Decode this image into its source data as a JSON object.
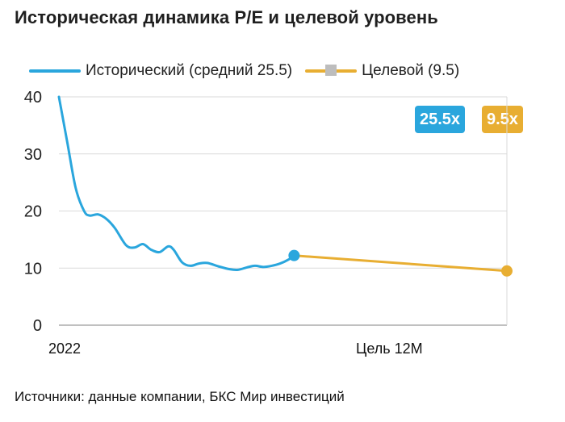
{
  "chart_data": {
    "type": "line",
    "title": "Историческая динамика P/E и целевой уровень",
    "x_labels": [
      "2022",
      "Цель 12М"
    ],
    "ylim": [
      0,
      40
    ],
    "yticks": [
      0,
      10,
      20,
      30,
      40
    ],
    "grid": true,
    "legend_position": "top",
    "series": [
      {
        "name": "Исторический (средний 25.5)",
        "color": "#2aa6dd",
        "points": [
          [
            0,
            40
          ],
          [
            3,
            32
          ],
          [
            6,
            24
          ],
          [
            9,
            20
          ],
          [
            11,
            19.2
          ],
          [
            14,
            19.4
          ],
          [
            17,
            18.6
          ],
          [
            20,
            17
          ],
          [
            24,
            14
          ],
          [
            27,
            13.6
          ],
          [
            30,
            14.2
          ],
          [
            33,
            13.2
          ],
          [
            36,
            12.8
          ],
          [
            39,
            13.8
          ],
          [
            41,
            13.2
          ],
          [
            44,
            11
          ],
          [
            47,
            10.4
          ],
          [
            50,
            10.8
          ],
          [
            53,
            10.9
          ],
          [
            57,
            10.3
          ],
          [
            61,
            9.8
          ],
          [
            64,
            9.7
          ],
          [
            67,
            10.1
          ],
          [
            70,
            10.4
          ],
          [
            73,
            10.2
          ],
          [
            76,
            10.4
          ],
          [
            79,
            10.8
          ],
          [
            82,
            11.5
          ],
          [
            84,
            12.2
          ]
        ],
        "end_value": 12.2
      },
      {
        "name": "Целевой (9.5)",
        "color": "#e8ae32",
        "points": [
          [
            84,
            12.2
          ],
          [
            160,
            9.5
          ]
        ],
        "end_value": 9.5
      }
    ],
    "badges": [
      {
        "text": "25.5x",
        "color": "#2aa6dd"
      },
      {
        "text": "9.5x",
        "color": "#e8ae32"
      }
    ],
    "x_domain": [
      0,
      160
    ]
  },
  "source": "Источники: данные компании, БКС Мир инвестиций"
}
